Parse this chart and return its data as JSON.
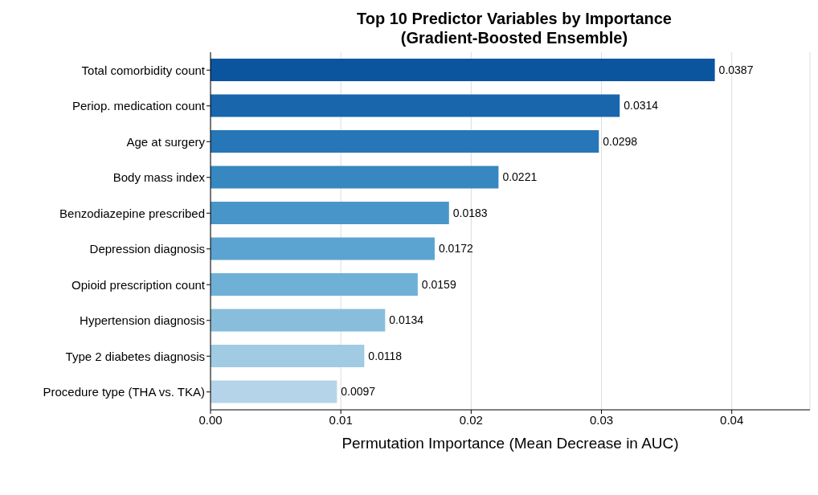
{
  "chart_data": {
    "type": "bar",
    "orientation": "horizontal",
    "title": "Top 10 Predictor Variables by Importance\n(Gradient-Boosted Ensemble)",
    "xlabel": "Permutation Importance (Mean Decrease in AUC)",
    "categories": [
      "Total comorbidity count",
      "Periop. medication count",
      "Age at surgery",
      "Body mass index",
      "Benzodiazepine prescribed",
      "Depression diagnosis",
      "Opioid prescription count",
      "Hypertension diagnosis",
      "Type 2 diabetes diagnosis",
      "Procedure type (THA vs. TKA)"
    ],
    "values": [
      0.0387,
      0.0314,
      0.0298,
      0.0221,
      0.0183,
      0.0172,
      0.0159,
      0.0134,
      0.0118,
      0.0097
    ],
    "colors": [
      "#0b559f",
      "#1966ad",
      "#2676b8",
      "#3787c0",
      "#4896c8",
      "#5ba3d0",
      "#6fb0d7",
      "#88bedc",
      "#a0cbe2",
      "#b5d4e9"
    ],
    "xlim": [
      0,
      0.046
    ],
    "xticks": [
      {
        "value": 0,
        "label": "0.00"
      },
      0.01,
      0.02,
      0.03,
      0.04
    ],
    "grid": "x",
    "data_labels": true
  }
}
